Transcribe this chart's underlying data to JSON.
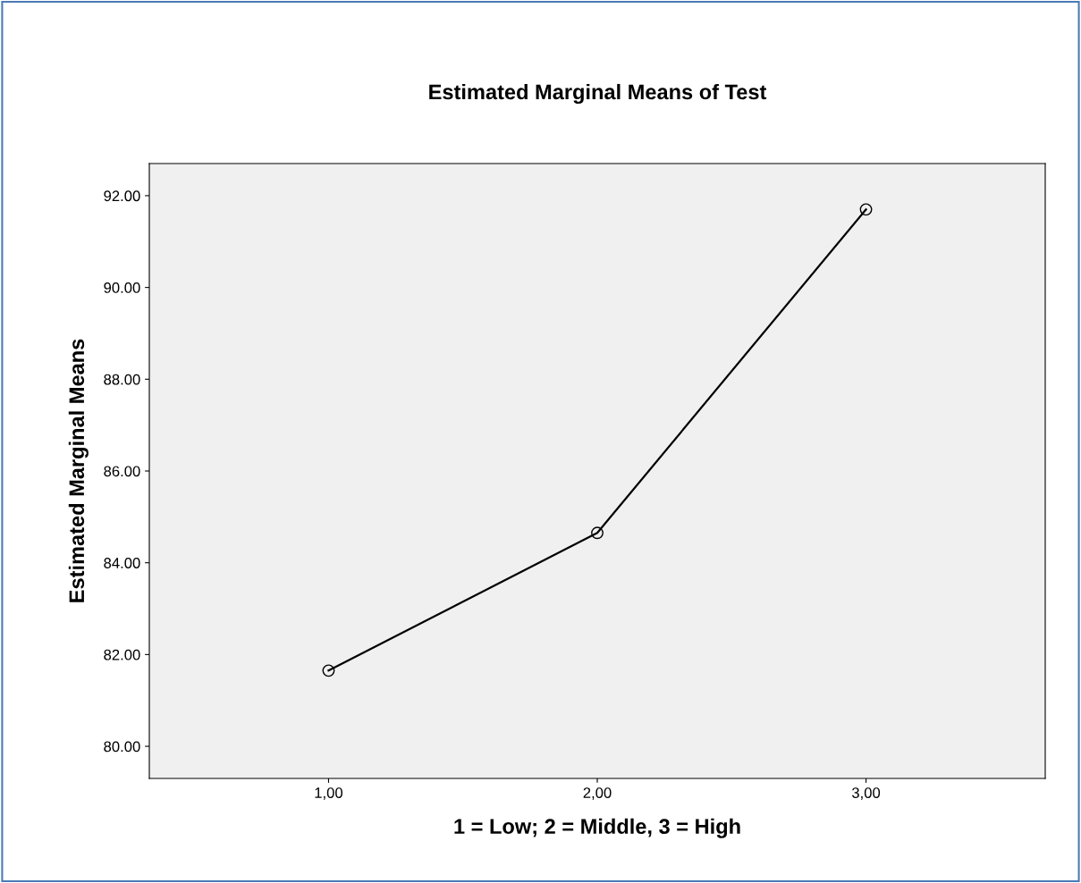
{
  "chart_data": {
    "type": "line",
    "title": "Estimated Marginal Means of Test",
    "xlabel": "1 = Low; 2 = Middle, 3 = High",
    "ylabel": "Estimated Marginal Means",
    "categories": [
      "1,00",
      "2,00",
      "3,00"
    ],
    "series": [
      {
        "color": "#000000",
        "values": [
          81.65,
          84.65,
          91.7
        ]
      }
    ],
    "ylim": [
      79.3,
      92.7
    ],
    "yticks": [
      {
        "value": 80,
        "label": "80.00"
      },
      {
        "value": 82,
        "label": "82.00"
      },
      {
        "value": 84,
        "label": "84.00"
      },
      {
        "value": 86,
        "label": "86.00"
      },
      {
        "value": 88,
        "label": "88.00"
      },
      {
        "value": 90,
        "label": "90.00"
      },
      {
        "value": 92,
        "label": "92.00"
      }
    ],
    "marker": "circle",
    "line_style": "solid",
    "grid": false,
    "legend": false
  }
}
